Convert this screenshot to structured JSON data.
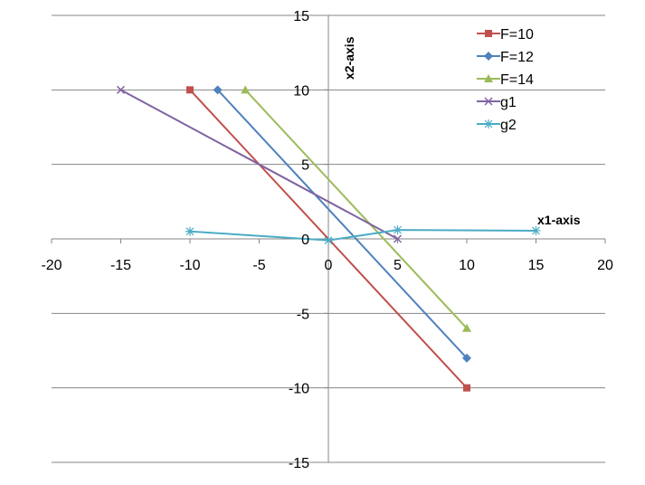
{
  "chart_data": {
    "type": "scatter",
    "xlabel": "x1-axis",
    "ylabel": "x2-axis",
    "xlim": [
      -20,
      20
    ],
    "ylim": [
      -15,
      15
    ],
    "x_ticks": [
      -20,
      -15,
      -10,
      -5,
      0,
      5,
      10,
      15,
      20
    ],
    "y_ticks": [
      -15,
      -10,
      -5,
      0,
      5,
      10,
      15
    ],
    "grid": "horizontal major gridlines",
    "legend_position": "top-right",
    "series": [
      {
        "name": "F=10",
        "color": "#C0504D",
        "marker": "square",
        "points": [
          [
            -10,
            10
          ],
          [
            10,
            -10
          ]
        ]
      },
      {
        "name": "F=12",
        "color": "#4F81BD",
        "marker": "diamond",
        "points": [
          [
            -8,
            10
          ],
          [
            10,
            -8
          ]
        ]
      },
      {
        "name": "F=14",
        "color": "#9BBB59",
        "marker": "triangle",
        "points": [
          [
            -6,
            10
          ],
          [
            10,
            -6
          ]
        ]
      },
      {
        "name": "g1",
        "color": "#8064A2",
        "marker": "x",
        "points": [
          [
            -15,
            10
          ],
          [
            5,
            0
          ]
        ]
      },
      {
        "name": "g2",
        "color": "#4BACC6",
        "marker": "star",
        "points": [
          [
            -10,
            0.5
          ],
          [
            0,
            -0.1
          ],
          [
            5,
            0.6
          ],
          [
            15,
            0.55
          ]
        ]
      }
    ]
  }
}
